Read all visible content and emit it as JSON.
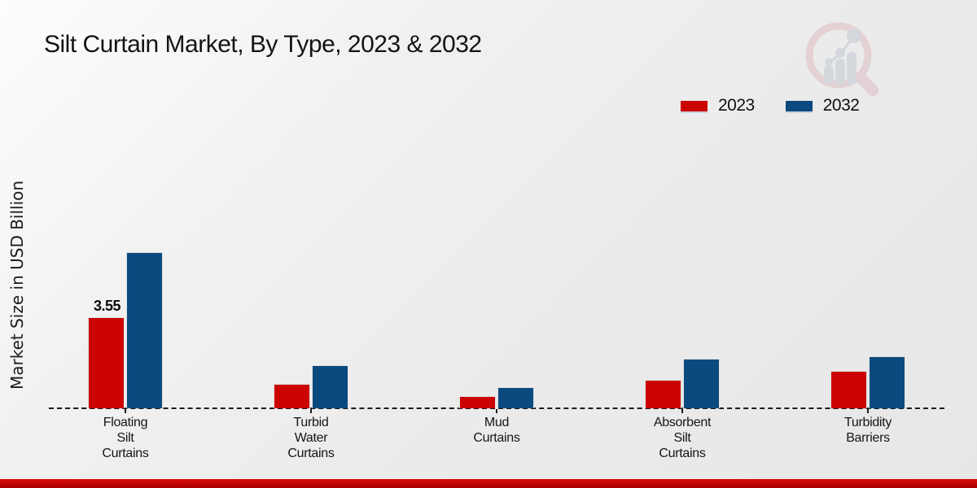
{
  "title": "Silt Curtain Market, By Type, 2023 & 2032",
  "y_axis_label": "Market Size in USD Billion",
  "legend": {
    "items": [
      {
        "label": "2023",
        "color": "#cc0303"
      },
      {
        "label": "2032",
        "color": "#0b4a7f"
      }
    ]
  },
  "colors": {
    "series_2023": "#cc0303",
    "series_2032": "#0b4a7f",
    "footer_strip": "#c40404",
    "baseline": "#1a1a1a",
    "logo_ring_pink": "#ddbcc3",
    "logo_bars_gray": "#c3c8d1"
  },
  "chart_data": {
    "type": "bar",
    "categories": [
      {
        "name": "Floating Silt Curtains",
        "lines": [
          "Floating",
          "Silt",
          "Curtains"
        ]
      },
      {
        "name": "Turbid Water Curtains",
        "lines": [
          "Turbid",
          "Water",
          "Curtains"
        ]
      },
      {
        "name": "Mud Curtains",
        "lines": [
          "Mud",
          "Curtains"
        ]
      },
      {
        "name": "Absorbent Silt Curtains",
        "lines": [
          "Absorbent",
          "Silt",
          "Curtains"
        ]
      },
      {
        "name": "Turbidity Barriers",
        "lines": [
          "Turbidity",
          "Barriers"
        ]
      }
    ],
    "series": [
      {
        "name": "2023",
        "color": "#cc0303",
        "values": [
          3.55,
          0.95,
          0.48,
          1.11,
          1.46
        ]
      },
      {
        "name": "2032",
        "color": "#0b4a7f",
        "values": [
          6.09,
          1.68,
          0.82,
          1.93,
          2.03
        ]
      }
    ],
    "annotations": [
      {
        "series_index": 0,
        "category_index": 0,
        "text": "3.55"
      }
    ],
    "title": "Silt Curtain Market, By Type, 2023 & 2032",
    "xlabel": "",
    "ylabel": "Market Size in USD Billion",
    "ylim": [
      0,
      11.2
    ],
    "grid": false,
    "legend_position": "top-right",
    "baseline_style": "dashed"
  }
}
